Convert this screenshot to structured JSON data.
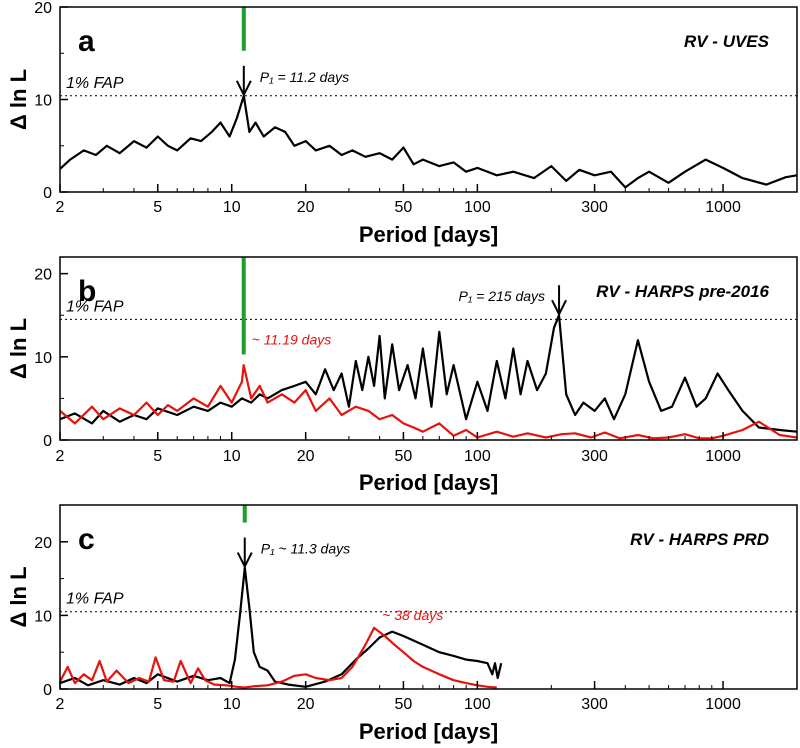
{
  "chart_data": [
    {
      "type": "line",
      "panel_letter": "a",
      "title": "RV - UVES",
      "xlabel": "Period [days]",
      "ylabel": "Δ ln L",
      "xscale": "log",
      "xlim": [
        2,
        2000
      ],
      "ylim": [
        0,
        20
      ],
      "xticks": [
        2,
        5,
        10,
        20,
        50,
        100,
        300,
        1000
      ],
      "xtick_labels": [
        "2",
        "5",
        "10",
        "20",
        "50",
        "100",
        "300",
        "1000"
      ],
      "yticks": [
        0,
        10,
        20
      ],
      "ytick_labels": [
        "0",
        "10",
        "20"
      ],
      "fap": {
        "label": "1% FAP",
        "value": 10.4
      },
      "marker": {
        "period": 11.2,
        "color": "#1f9e2c"
      },
      "annotations": [
        {
          "text": "P₁ = 11.2 days",
          "period": 11.2,
          "value": 10.4,
          "color": "#000000",
          "arrow": true
        }
      ],
      "series": [
        {
          "color": "#000000",
          "x": [
            2,
            2.2,
            2.5,
            2.8,
            3.1,
            3.5,
            4,
            4.5,
            5,
            5.5,
            6,
            6.8,
            7.5,
            8.3,
            9,
            9.8,
            10.5,
            11.2,
            11.8,
            12.5,
            13.5,
            15,
            16.5,
            18,
            20,
            22,
            25,
            28,
            31,
            35,
            40,
            45,
            50,
            55,
            60,
            70,
            80,
            90,
            100,
            120,
            140,
            170,
            200,
            230,
            260,
            300,
            350,
            400,
            450,
            500,
            600,
            700,
            850,
            1000,
            1200,
            1500,
            1800,
            2000
          ],
          "y": [
            2.5,
            3.5,
            4.5,
            4.0,
            5.0,
            4.2,
            5.5,
            4.8,
            6.0,
            5.0,
            4.5,
            5.8,
            5.5,
            6.5,
            7.5,
            6.0,
            8.0,
            10.4,
            6.5,
            7.5,
            6.0,
            7.0,
            6.5,
            5.0,
            5.5,
            4.5,
            5.0,
            4.0,
            4.5,
            3.8,
            4.2,
            3.5,
            4.8,
            3.0,
            3.5,
            2.8,
            3.2,
            2.2,
            2.6,
            1.8,
            2.2,
            1.5,
            2.8,
            1.2,
            2.4,
            1.8,
            2.2,
            0.5,
            1.5,
            2.2,
            1.0,
            2.2,
            3.5,
            2.6,
            1.5,
            0.8,
            1.6,
            1.8
          ]
        }
      ]
    },
    {
      "type": "line",
      "panel_letter": "b",
      "title": "RV - HARPS pre-2016",
      "xlabel": "Period [days]",
      "ylabel": "Δ ln L",
      "xscale": "log",
      "xlim": [
        2,
        2000
      ],
      "ylim": [
        0,
        22
      ],
      "xticks": [
        2,
        5,
        10,
        20,
        50,
        100,
        300,
        1000
      ],
      "xtick_labels": [
        "2",
        "5",
        "10",
        "20",
        "50",
        "100",
        "300",
        "1000"
      ],
      "yticks": [
        0,
        10,
        20
      ],
      "ytick_labels": [
        "0",
        "10",
        "20"
      ],
      "fap": {
        "label": "1% FAP",
        "value": 14.5
      },
      "marker": {
        "period": 11.19,
        "color": "#1f9e2c"
      },
      "annotations": [
        {
          "text": "P₁ = 215 days",
          "period": 215,
          "value": 15.0,
          "color": "#000000",
          "arrow": true
        },
        {
          "text": "~ 11.19 days",
          "period": 11.19,
          "value": 10.5,
          "color": "#e8120c",
          "arrow": false
        }
      ],
      "series": [
        {
          "color": "#000000",
          "x": [
            2,
            2.3,
            2.7,
            3,
            3.5,
            4,
            4.5,
            5,
            6,
            7,
            8,
            9,
            10,
            11,
            12,
            13,
            14,
            16,
            18,
            20,
            22,
            24,
            26,
            28,
            30,
            32,
            34,
            36,
            38,
            40,
            42,
            45,
            48,
            52,
            56,
            60,
            65,
            70,
            75,
            80,
            90,
            100,
            110,
            120,
            130,
            140,
            150,
            160,
            175,
            190,
            205,
            215,
            230,
            250,
            270,
            300,
            330,
            360,
            400,
            450,
            500,
            560,
            620,
            700,
            780,
            850,
            950,
            1050,
            1200,
            1400,
            1700,
            2000
          ],
          "y": [
            2.5,
            3.2,
            2.0,
            3.5,
            2.2,
            3.0,
            2.5,
            3.8,
            3.0,
            4.0,
            3.5,
            4.5,
            4.0,
            5.0,
            4.5,
            5.5,
            5.0,
            6.0,
            6.5,
            7.0,
            5.5,
            8.5,
            6.0,
            8.0,
            4.0,
            9.5,
            6.0,
            10.0,
            6.5,
            12.5,
            5.0,
            11.5,
            6.0,
            9.0,
            5.0,
            11.0,
            4.0,
            13.0,
            5.5,
            9.0,
            2.5,
            7.0,
            3.5,
            9.5,
            5.0,
            11.0,
            5.5,
            9.5,
            6.0,
            8.0,
            13.5,
            15.0,
            5.5,
            3.0,
            4.5,
            3.5,
            5.0,
            2.5,
            5.5,
            12.0,
            7.0,
            3.5,
            4.0,
            7.5,
            4.0,
            5.0,
            8.0,
            6.0,
            3.5,
            1.5,
            1.2,
            1.0
          ]
        },
        {
          "color": "#e8120c",
          "x": [
            2,
            2.3,
            2.7,
            3,
            3.5,
            4,
            4.5,
            5,
            5.5,
            6,
            7,
            8,
            9,
            10,
            11,
            11.19,
            12,
            13,
            14,
            16,
            18,
            20,
            22,
            25,
            28,
            32,
            36,
            40,
            45,
            50,
            55,
            60,
            70,
            80,
            90,
            100,
            120,
            140,
            160,
            190,
            220,
            250,
            290,
            330,
            380,
            450,
            520,
            600,
            700,
            800,
            900,
            1000,
            1200,
            1400,
            1700,
            2000
          ],
          "y": [
            3.5,
            2.0,
            4.0,
            2.5,
            3.8,
            3.0,
            4.5,
            3.0,
            4.2,
            3.5,
            5.0,
            4.0,
            6.5,
            4.5,
            7.0,
            9.0,
            5.0,
            6.5,
            4.5,
            5.5,
            4.5,
            6.0,
            3.5,
            5.0,
            3.0,
            4.0,
            3.5,
            2.5,
            3.0,
            2.0,
            1.5,
            1.0,
            2.0,
            0.5,
            1.2,
            0.3,
            1.0,
            0.4,
            0.8,
            0.3,
            0.7,
            0.8,
            0.3,
            0.9,
            0.2,
            0.6,
            0.2,
            0.3,
            0.7,
            0.2,
            0.2,
            0.5,
            1.2,
            2.2,
            0.6,
            0.3
          ]
        }
      ]
    },
    {
      "type": "line",
      "panel_letter": "c",
      "title": "RV - HARPS PRD",
      "xlabel": "Period [days]",
      "ylabel": "Δ ln L",
      "xscale": "log",
      "xlim": [
        2,
        2000
      ],
      "ylim": [
        0,
        25
      ],
      "xticks": [
        2,
        5,
        10,
        20,
        50,
        100,
        300,
        1000
      ],
      "xtick_labels": [
        "2",
        "5",
        "10",
        "20",
        "50",
        "100",
        "300",
        "1000"
      ],
      "yticks": [
        0,
        10,
        20
      ],
      "ytick_labels": [
        "0",
        "10",
        "20"
      ],
      "fap": {
        "label": "1% FAP",
        "value": 10.5
      },
      "marker": {
        "period": 11.3,
        "color": "#1f9e2c"
      },
      "annotations": [
        {
          "text": "P₁ ~ 11.3 days",
          "period": 11.3,
          "value": 16.5,
          "color": "#000000",
          "arrow": true
        },
        {
          "text": "~ 38 days",
          "period": 38,
          "value": 8.3,
          "color": "#e8120c",
          "arrow": false
        }
      ],
      "series": [
        {
          "color": "#000000",
          "x": [
            2,
            2.3,
            2.6,
            3,
            3.5,
            4,
            4.5,
            5,
            6,
            7,
            8,
            9,
            9.8,
            10.3,
            10.8,
            11.3,
            11.8,
            12.3,
            13,
            14,
            15,
            17,
            20,
            24,
            28,
            32,
            36,
            40,
            45,
            50,
            60,
            70,
            80,
            90,
            100,
            110,
            115,
            118,
            121,
            125
          ],
          "y": [
            0.8,
            1.5,
            0.5,
            1.2,
            0.6,
            1.5,
            0.8,
            2.0,
            1.0,
            1.8,
            1.2,
            1.5,
            0.8,
            4.0,
            10.0,
            16.5,
            11.0,
            5.0,
            3.0,
            2.5,
            1.0,
            0.6,
            0.3,
            1.0,
            2.0,
            4.0,
            5.5,
            7.0,
            7.8,
            7.2,
            6.0,
            5.0,
            4.5,
            4.0,
            3.8,
            3.5,
            2.0,
            3.5,
            1.5,
            3.5
          ]
        },
        {
          "color": "#e8120c",
          "x": [
            2,
            2.15,
            2.3,
            2.5,
            2.7,
            2.9,
            3.1,
            3.4,
            3.8,
            4.2,
            4.6,
            4.9,
            5.3,
            5.8,
            6.2,
            6.8,
            7.3,
            7.8,
            8.5,
            9.5,
            10.5,
            11.3,
            12.5,
            14,
            16,
            18,
            20,
            22,
            25,
            28,
            31,
            35,
            38,
            42,
            46,
            50,
            55,
            60,
            70,
            80,
            90,
            100,
            110,
            120
          ],
          "y": [
            1.0,
            3.0,
            0.8,
            2.0,
            1.2,
            3.8,
            1.0,
            2.5,
            0.8,
            1.5,
            1.0,
            4.3,
            1.2,
            1.0,
            3.8,
            0.8,
            2.8,
            1.2,
            0.6,
            0.5,
            0.3,
            0.2,
            0.4,
            0.5,
            1.0,
            1.8,
            2.0,
            1.5,
            1.2,
            1.5,
            3.0,
            6.0,
            8.3,
            7.2,
            6.0,
            5.0,
            3.8,
            3.0,
            2.0,
            1.2,
            0.8,
            0.5,
            0.3,
            0.2
          ]
        }
      ]
    }
  ]
}
